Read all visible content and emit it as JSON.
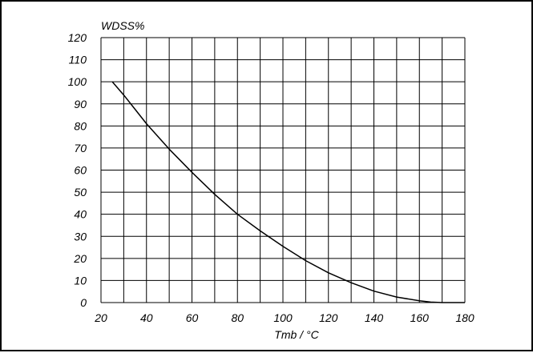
{
  "chart_data": {
    "type": "line",
    "title": "",
    "xlabel": "Tmb / °C",
    "ylabel": "WDSS%",
    "xlim": [
      20,
      180
    ],
    "ylim": [
      0,
      120
    ],
    "grid": true,
    "x_ticks": [
      20,
      40,
      60,
      80,
      100,
      120,
      140,
      160,
      180
    ],
    "y_ticks": [
      0,
      10,
      20,
      30,
      40,
      50,
      60,
      70,
      80,
      90,
      100,
      110,
      120
    ],
    "x_tick_labels": [
      "20",
      "40",
      "60",
      "80",
      "100",
      "120",
      "140",
      "160",
      "180"
    ],
    "y_tick_labels": [
      "0",
      "10",
      "20",
      "30",
      "40",
      "50",
      "60",
      "70",
      "80",
      "90",
      "100",
      "110",
      "120"
    ],
    "series": [
      {
        "color": "#000000",
        "x": [
          25,
          30,
          35,
          40,
          50,
          60,
          70,
          80,
          90,
          100,
          110,
          120,
          130,
          140,
          150,
          160,
          165,
          170,
          180
        ],
        "y": [
          100,
          94,
          87.5,
          81,
          69.5,
          59,
          49,
          40,
          32.5,
          25.5,
          19,
          13.5,
          9,
          5.2,
          2.5,
          0.8,
          0.2,
          0,
          0
        ]
      }
    ]
  }
}
